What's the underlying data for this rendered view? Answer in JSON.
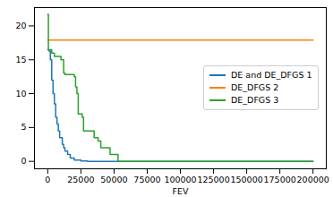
{
  "chart_data": {
    "type": "line",
    "xlabel": "FEV",
    "xlim": [
      -10000,
      210000
    ],
    "ylim": [
      -1.1,
      22.7
    ],
    "xticks": [
      0,
      25000,
      50000,
      75000,
      100000,
      125000,
      150000,
      175000,
      200000
    ],
    "yticks": [
      0,
      5,
      10,
      15,
      20
    ],
    "grid": false,
    "legend": "center right",
    "series": [
      {
        "name": "DE and DE_DFGS 1",
        "color": "#1f77b4",
        "x": [
          0,
          1000,
          2000,
          3000,
          4000,
          5000,
          6000,
          7000,
          8000,
          9000,
          10000,
          11000,
          12000,
          13000,
          15000,
          17000,
          20000,
          25000,
          30000,
          200000
        ],
        "values": [
          16.5,
          16.3,
          15,
          12,
          10,
          8.5,
          6.5,
          5.5,
          4.5,
          3.5,
          3.5,
          2.5,
          2,
          1.5,
          1,
          0.5,
          0.2,
          0.05,
          0,
          0
        ]
      },
      {
        "name": "DE_DFGS 2",
        "color": "#ff7f0e",
        "x": [
          0,
          200000
        ],
        "values": [
          17.9,
          17.9
        ]
      },
      {
        "name": "DE_DFGS 3",
        "color": "#2ca02c",
        "x": [
          0,
          500,
          3000,
          5000,
          10000,
          12000,
          13000,
          20000,
          21000,
          22000,
          23000,
          26000,
          27000,
          35000,
          38000,
          40000,
          47000,
          53000,
          200000
        ],
        "values": [
          21.7,
          16.5,
          16,
          15.5,
          15,
          13,
          12.8,
          12.5,
          11,
          10,
          7,
          6.5,
          4.5,
          3.5,
          3,
          2,
          1,
          0,
          0
        ]
      }
    ]
  }
}
